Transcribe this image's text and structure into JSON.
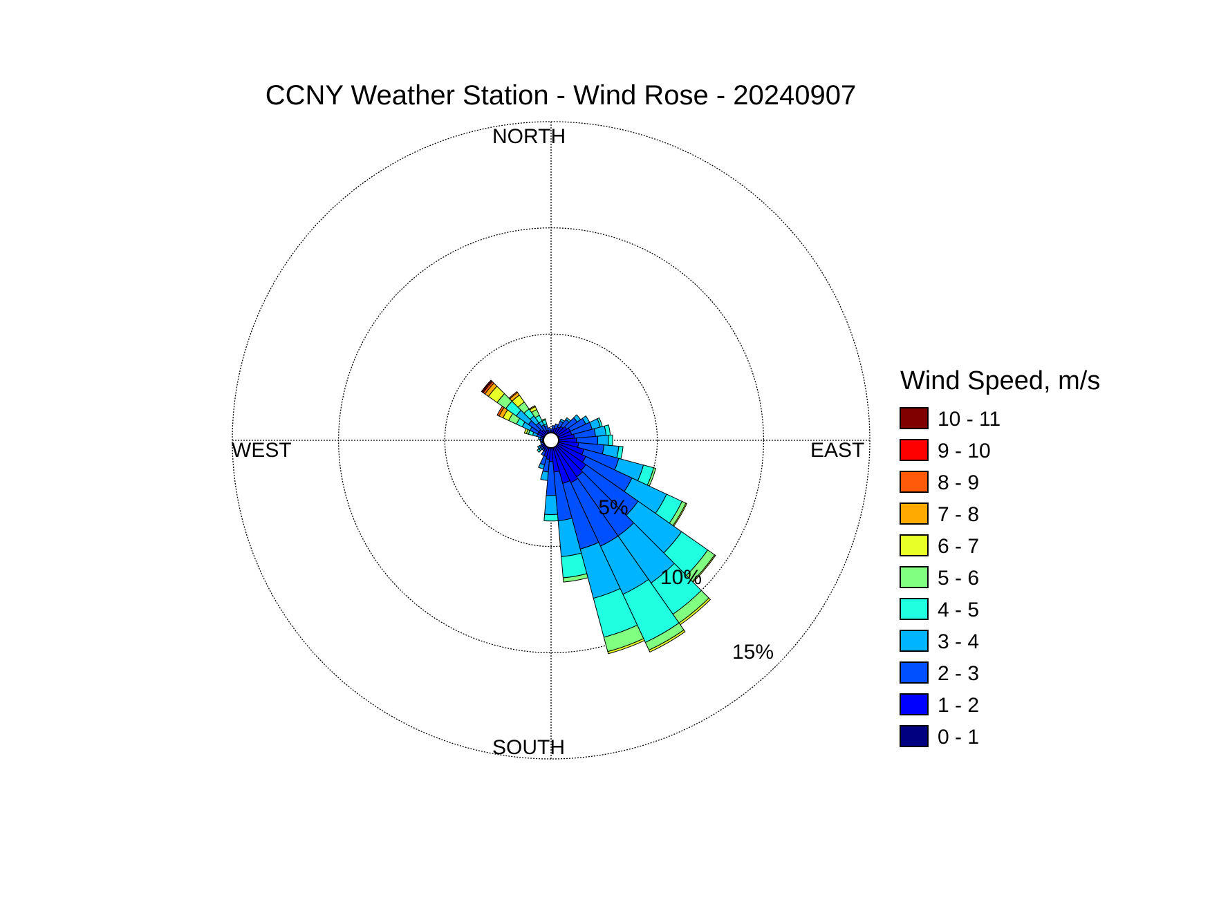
{
  "chart_data": {
    "type": "wind_rose",
    "title": "CCNY Weather Station - Wind Rose - 20240907",
    "direction_labels": {
      "north": "NORTH",
      "east": "EAST",
      "south": "SOUTH",
      "west": "WEST"
    },
    "radial_ticks": [
      5,
      10,
      15
    ],
    "radial_tick_labels": [
      "5%",
      "10%",
      "15%"
    ],
    "radial_max": 15,
    "radial_unit": "%",
    "legend": {
      "title": "Wind Speed, m/s",
      "bins": [
        {
          "label": "10 - 11",
          "color": "#800000"
        },
        {
          "label": "9 - 10",
          "color": "#ff0000"
        },
        {
          "label": "8 - 9",
          "color": "#ff5a0a"
        },
        {
          "label": "7 - 8",
          "color": "#ffaa00"
        },
        {
          "label": "6 - 7",
          "color": "#e8ff28"
        },
        {
          "label": "5 - 6",
          "color": "#80ff80"
        },
        {
          "label": "4 - 5",
          "color": "#20ffe0"
        },
        {
          "label": "3 - 4",
          "color": "#00b4ff"
        },
        {
          "label": "2 - 3",
          "color": "#0050ff"
        },
        {
          "label": "1 - 2",
          "color": "#0000ff"
        },
        {
          "label": "0 - 1",
          "color": "#000080"
        }
      ]
    },
    "sector_width_deg": 10,
    "speed_bins_order": [
      "0 - 1",
      "1 - 2",
      "2 - 3",
      "3 - 4",
      "4 - 5",
      "5 - 6",
      "6 - 7",
      "7 - 8",
      "8 - 9",
      "9 - 10",
      "10 - 11"
    ],
    "sectors": [
      {
        "direction_deg": 0,
        "cumulative_percent": [
          0.3,
          0.45,
          0.55
        ]
      },
      {
        "direction_deg": 10,
        "cumulative_percent": [
          0.3,
          0.55,
          0.7
        ]
      },
      {
        "direction_deg": 20,
        "cumulative_percent": [
          0.3,
          0.6,
          0.8
        ]
      },
      {
        "direction_deg": 30,
        "cumulative_percent": [
          0.3,
          0.7,
          1.0,
          1.1
        ]
      },
      {
        "direction_deg": 40,
        "cumulative_percent": [
          0.3,
          0.8,
          1.2,
          1.3
        ]
      },
      {
        "direction_deg": 50,
        "cumulative_percent": [
          0.3,
          0.9,
          1.5,
          1.7
        ]
      },
      {
        "direction_deg": 60,
        "cumulative_percent": [
          0.3,
          1.0,
          1.8,
          2.0
        ]
      },
      {
        "direction_deg": 70,
        "cumulative_percent": [
          0.3,
          1.0,
          2.0,
          2.4,
          2.5
        ]
      },
      {
        "direction_deg": 80,
        "cumulative_percent": [
          0.3,
          1.1,
          2.1,
          2.6,
          2.8
        ]
      },
      {
        "direction_deg": 90,
        "cumulative_percent": [
          0.3,
          1.2,
          2.2,
          2.7,
          2.9
        ]
      },
      {
        "direction_deg": 100,
        "cumulative_percent": [
          0.3,
          1.3,
          2.5,
          3.2,
          3.4
        ]
      },
      {
        "direction_deg": 110,
        "cumulative_percent": [
          0.3,
          1.6,
          3.3,
          4.5,
          5.0,
          5.1
        ]
      },
      {
        "direction_deg": 120,
        "cumulative_percent": [
          0.3,
          1.8,
          4.2,
          6.0,
          6.8,
          7.0,
          7.05
        ]
      },
      {
        "direction_deg": 130,
        "cumulative_percent": [
          0.3,
          2.0,
          5.0,
          7.5,
          9.0,
          9.4,
          9.45
        ]
      },
      {
        "direction_deg": 140,
        "cumulative_percent": [
          0.3,
          2.1,
          5.5,
          8.2,
          10.0,
          10.5,
          10.6
        ]
      },
      {
        "direction_deg": 150,
        "cumulative_percent": [
          0.3,
          2.2,
          5.5,
          8.0,
          10.5,
          10.9,
          11.0
        ]
      },
      {
        "direction_deg": 160,
        "cumulative_percent": [
          0.3,
          2.1,
          5.3,
          7.7,
          9.6,
          10.3,
          10.4
        ]
      },
      {
        "direction_deg": 170,
        "cumulative_percent": [
          0.3,
          1.5,
          3.8,
          5.5,
          6.5,
          6.7
        ]
      },
      {
        "direction_deg": 180,
        "cumulative_percent": [
          0.3,
          1.0,
          2.6,
          3.5,
          3.8
        ]
      },
      {
        "direction_deg": 190,
        "cumulative_percent": [
          0.3,
          0.9,
          1.5,
          1.9
        ]
      },
      {
        "direction_deg": 200,
        "cumulative_percent": [
          0.3,
          0.8,
          1.2,
          1.4
        ]
      },
      {
        "direction_deg": 210,
        "cumulative_percent": [
          0.3,
          0.6,
          0.8
        ]
      },
      {
        "direction_deg": 220,
        "cumulative_percent": [
          0.3,
          0.5,
          0.6
        ]
      },
      {
        "direction_deg": 230,
        "cumulative_percent": [
          0.3,
          0.5,
          0.6,
          0.7,
          0.8
        ]
      },
      {
        "direction_deg": 240,
        "cumulative_percent": [
          0.3,
          0.5,
          0.6,
          0.7
        ]
      },
      {
        "direction_deg": 250,
        "cumulative_percent": [
          0.3,
          0.4,
          0.5
        ]
      },
      {
        "direction_deg": 260,
        "cumulative_percent": [
          0.3,
          0.4,
          0.5
        ]
      },
      {
        "direction_deg": 270,
        "cumulative_percent": [
          0.3,
          0.4,
          0.5
        ]
      },
      {
        "direction_deg": 280,
        "cumulative_percent": [
          0.3,
          0.4,
          0.5,
          0.6
        ]
      },
      {
        "direction_deg": 290,
        "cumulative_percent": [
          0.3,
          0.5,
          0.7,
          0.9,
          1.1,
          1.2,
          1.3
        ]
      },
      {
        "direction_deg": 300,
        "cumulative_percent": [
          0.3,
          0.7,
          1.1,
          1.5,
          1.8,
          2.2,
          2.5,
          2.7,
          2.8
        ]
      },
      {
        "direction_deg": 310,
        "cumulative_percent": [
          0.3,
          0.7,
          1.3,
          2.0,
          2.6,
          3.1,
          3.6,
          3.8,
          3.9,
          3.95,
          4.0
        ]
      },
      {
        "direction_deg": 320,
        "cumulative_percent": [
          0.3,
          0.6,
          1.0,
          1.4,
          1.8,
          2.2,
          2.6,
          2.75,
          2.8
        ]
      },
      {
        "direction_deg": 330,
        "cumulative_percent": [
          0.3,
          0.5,
          0.8,
          1.0,
          1.3,
          1.6,
          1.75,
          1.8
        ]
      },
      {
        "direction_deg": 340,
        "cumulative_percent": [
          0.3,
          0.5,
          0.7,
          0.8,
          1.0,
          1.05
        ]
      },
      {
        "direction_deg": 350,
        "cumulative_percent": [
          0.3,
          0.45,
          0.6
        ]
      }
    ]
  }
}
